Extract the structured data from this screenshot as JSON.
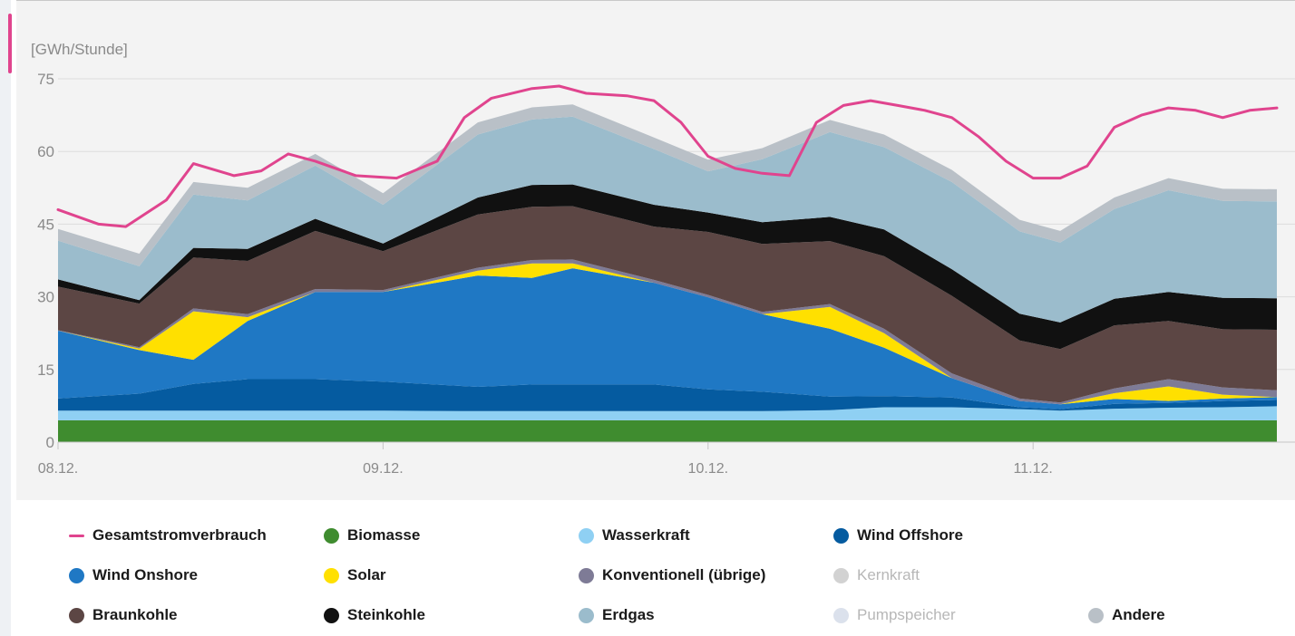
{
  "chart_data": {
    "type": "area",
    "stacked": true,
    "unit_label": "[GWh/Stunde]",
    "ylim": [
      0,
      75
    ],
    "yticks": [
      0,
      15,
      30,
      45,
      60,
      75
    ],
    "xlim": [
      0,
      90
    ],
    "xticks": [
      {
        "x": 0,
        "label": "08.12."
      },
      {
        "x": 24,
        "label": "09.12."
      },
      {
        "x": 48,
        "label": "10.12."
      },
      {
        "x": 72,
        "label": "11.12."
      }
    ],
    "grid": true,
    "hours": [
      0,
      6,
      10,
      14,
      19,
      24,
      31,
      35,
      38,
      44,
      48,
      52,
      57,
      61,
      66,
      71,
      74,
      78,
      82,
      86,
      90
    ],
    "series": [
      {
        "name": "Biomasse",
        "color": "#3f8c2f",
        "values": [
          4.5,
          4.5,
          4.5,
          4.5,
          4.5,
          4.5,
          4.5,
          4.5,
          4.5,
          4.5,
          4.5,
          4.5,
          4.5,
          4.5,
          4.5,
          4.5,
          4.5,
          4.5,
          4.5,
          4.5,
          4.5
        ]
      },
      {
        "name": "Wasserkraft",
        "color": "#8fd0f3",
        "values": [
          2.0,
          2.0,
          2.0,
          2.0,
          2.0,
          2.0,
          1.9,
          1.9,
          1.9,
          1.9,
          1.9,
          1.9,
          2.1,
          2.7,
          2.7,
          2.3,
          2.0,
          2.4,
          2.6,
          2.7,
          2.9
        ]
      },
      {
        "name": "Wind Offshore",
        "color": "#055ba0",
        "values": [
          2.5,
          3.5,
          5.5,
          6.5,
          6.5,
          6.0,
          5.0,
          5.5,
          5.5,
          5.5,
          4.5,
          4.0,
          2.8,
          2.3,
          2.0,
          0.4,
          0.3,
          1.0,
          1.0,
          1.3,
          1.3
        ]
      },
      {
        "name": "Wind Onshore",
        "color": "#1f78c4",
        "values": [
          14.0,
          9.0,
          5.0,
          12.0,
          18.0,
          18.5,
          23.0,
          22.0,
          24.0,
          21.0,
          19.0,
          16.0,
          14.0,
          10.0,
          4.0,
          1.3,
          1.0,
          1.0,
          0.4,
          0.5,
          0.6
        ]
      },
      {
        "name": "Solar",
        "color": "#ffe000",
        "values": [
          0.0,
          0.3,
          10.0,
          0.8,
          0.0,
          0.0,
          1.0,
          3.0,
          1.0,
          0.0,
          0.0,
          0.0,
          4.5,
          3.0,
          0.0,
          0.0,
          0.0,
          1.2,
          3.0,
          0.8,
          0.0
        ]
      },
      {
        "name": "Konventionell (übrige)",
        "color": "#7e7b96",
        "values": [
          0.1,
          0.3,
          0.6,
          0.6,
          0.6,
          0.4,
          0.6,
          0.7,
          0.8,
          0.6,
          0.5,
          0.5,
          0.6,
          0.9,
          1.0,
          0.5,
          0.4,
          1.0,
          1.5,
          1.5,
          1.4
        ]
      },
      {
        "name": "Kernkraft",
        "color": "#cfcfcf",
        "values": [
          0,
          0,
          0,
          0,
          0,
          0,
          0,
          0,
          0,
          0,
          0,
          0,
          0,
          0,
          0,
          0,
          0,
          0,
          0,
          0,
          0
        ]
      },
      {
        "name": "Braunkohle",
        "color": "#5c4644",
        "values": [
          9.0,
          9.0,
          10.5,
          11.0,
          12.0,
          8.0,
          11.0,
          11.0,
          11.0,
          11.0,
          13.0,
          14.0,
          13.0,
          15.0,
          16.0,
          12.0,
          11.0,
          13.0,
          12.0,
          12.0,
          12.5
        ]
      },
      {
        "name": "Steinkohle",
        "color": "#111111",
        "values": [
          1.5,
          0.7,
          2.0,
          2.5,
          2.5,
          1.6,
          3.5,
          4.5,
          4.5,
          4.5,
          4.0,
          4.5,
          5.0,
          5.5,
          5.5,
          5.5,
          5.5,
          5.5,
          6.0,
          6.5,
          6.5
        ]
      },
      {
        "name": "Erdgas",
        "color": "#9bbccc",
        "values": [
          8.0,
          7.0,
          11.0,
          10.0,
          11.0,
          8.0,
          13.0,
          13.5,
          14.0,
          11.5,
          8.5,
          13.0,
          17.5,
          17.0,
          18.0,
          17.0,
          16.5,
          18.5,
          21.0,
          20.0,
          20.0
        ]
      },
      {
        "name": "Pumpspeicher",
        "color": "#dbe1ec",
        "values": [
          0,
          0,
          0,
          0,
          0,
          0,
          0,
          0,
          0,
          0,
          0,
          0,
          0,
          0,
          0,
          0,
          0,
          0,
          0,
          0,
          0
        ]
      },
      {
        "name": "Andere",
        "color": "#b9c0c7",
        "values": [
          2.4,
          2.6,
          2.6,
          2.6,
          2.4,
          2.4,
          2.5,
          2.5,
          2.5,
          2.4,
          2.4,
          2.3,
          2.5,
          2.6,
          2.5,
          2.4,
          2.4,
          2.4,
          2.5,
          2.5,
          2.5
        ]
      }
    ],
    "total_consumption": {
      "name": "Gesamtstromverbrauch",
      "color": "#e0448e",
      "hours": [
        0,
        3,
        5,
        8,
        10,
        13,
        15,
        17,
        19,
        22,
        25,
        28,
        30,
        32,
        35,
        37,
        39,
        42,
        44,
        46,
        48,
        50,
        52,
        54,
        56,
        58,
        60,
        62,
        64,
        66,
        68,
        70,
        72,
        74,
        76,
        78,
        80,
        82,
        84,
        86,
        88,
        90
      ],
      "values": [
        48,
        45,
        44.5,
        50,
        57.5,
        55,
        56,
        59.5,
        58,
        55,
        54.5,
        58,
        67,
        71,
        73,
        73.5,
        72,
        71.5,
        70.5,
        66,
        59,
        56.5,
        55.5,
        55,
        66,
        69.5,
        70.5,
        69.5,
        68.5,
        67,
        63,
        58,
        54.5,
        54.5,
        57,
        65,
        67.5,
        69,
        68.5,
        67,
        68.5,
        69
      ]
    }
  },
  "legend": [
    {
      "label": "Gesamtstromverbrauch",
      "color": "#e0448e",
      "marker": "line",
      "active": true
    },
    {
      "label": "Biomasse",
      "color": "#3f8c2f",
      "marker": "dot",
      "active": true
    },
    {
      "label": "Wasserkraft",
      "color": "#8fd0f3",
      "marker": "dot",
      "active": true
    },
    {
      "label": "Wind Offshore",
      "color": "#055ba0",
      "marker": "dot",
      "active": true
    },
    {
      "label": "Wind Onshore",
      "color": "#1f78c4",
      "marker": "dot",
      "active": true
    },
    {
      "label": "Solar",
      "color": "#ffe000",
      "marker": "dot",
      "active": true
    },
    {
      "label": "Konventionell (übrige)",
      "color": "#7e7b96",
      "marker": "dot",
      "active": true
    },
    {
      "label": "Kernkraft",
      "color": "#d2d2d2",
      "marker": "dot",
      "active": false
    },
    {
      "label": "Braunkohle",
      "color": "#5c4644",
      "marker": "dot",
      "active": true
    },
    {
      "label": "Steinkohle",
      "color": "#111111",
      "marker": "dot",
      "active": true
    },
    {
      "label": "Erdgas",
      "color": "#9bbccc",
      "marker": "dot",
      "active": true
    },
    {
      "label": "Pumpspeicher",
      "color": "#dbe1ec",
      "marker": "dot",
      "active": false
    },
    {
      "label": "Andere",
      "color": "#b9c0c7",
      "marker": "dot",
      "active": true
    }
  ]
}
